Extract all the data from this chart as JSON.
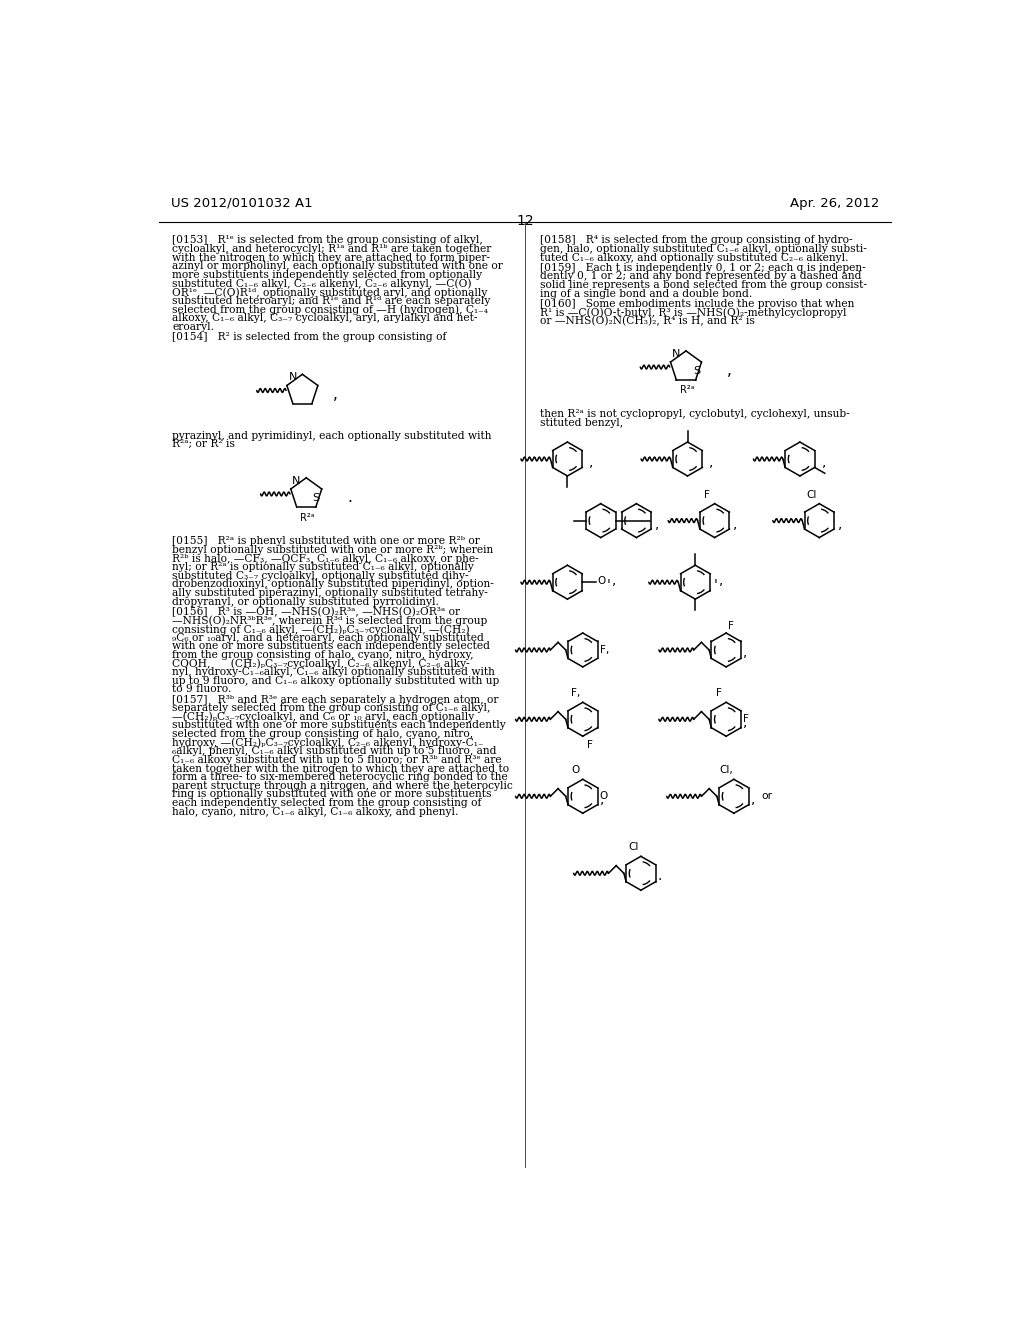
{
  "background_color": "#ffffff",
  "page_number": "12",
  "header_left": "US 2012/0101032 A1",
  "header_right": "Apr. 26, 2012",
  "figsize": [
    10.24,
    13.2
  ],
  "dpi": 100
}
